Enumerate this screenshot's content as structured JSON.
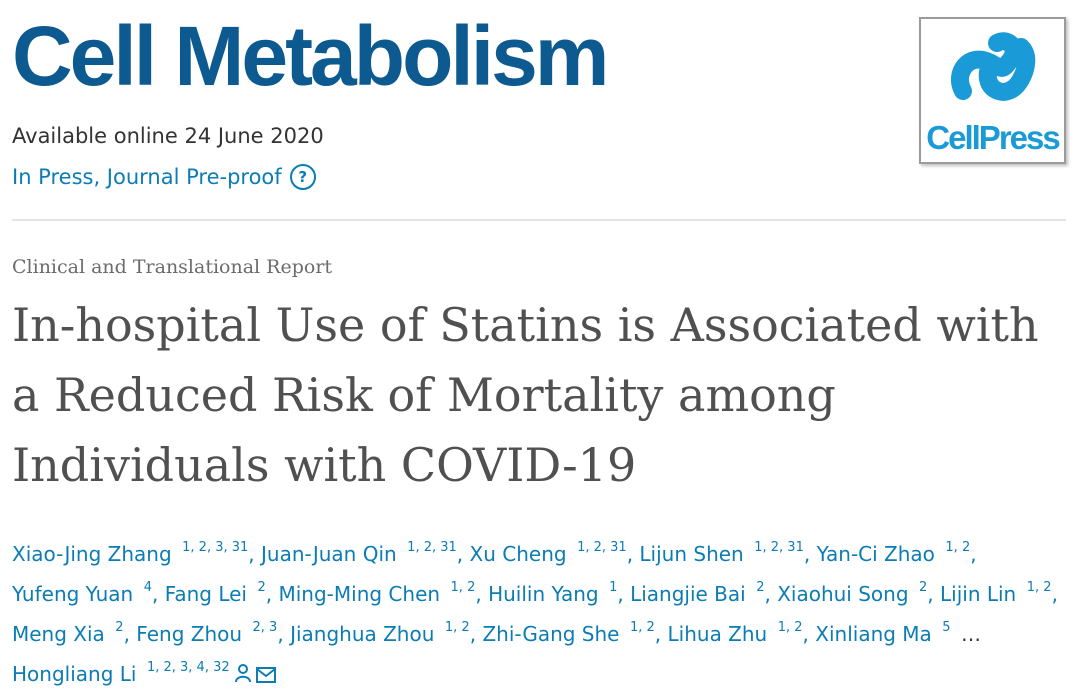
{
  "header": {
    "journal_title": "Cell Metabolism",
    "available_online": "Available online 24 June 2020",
    "status": "In Press, Journal Pre-proof",
    "help_icon": "question-circle-icon",
    "publisher_logo_text": "CellPress"
  },
  "article": {
    "type": "Clinical and Translational Report",
    "title": "In-hospital Use of Statins is Associated with a Reduced Risk of Mortality among Individuals with COVID-19"
  },
  "authors": [
    {
      "name": "Xiao-Jing Zhang",
      "sup": "1, 2, 3, 31"
    },
    {
      "name": "Juan-Juan Qin",
      "sup": "1, 2, 31"
    },
    {
      "name": "Xu Cheng",
      "sup": "1, 2, 31"
    },
    {
      "name": "Lijun Shen",
      "sup": "1, 2, 31"
    },
    {
      "name": "Yan-Ci Zhao",
      "sup": "1, 2"
    },
    {
      "name": "Yufeng Yuan",
      "sup": "4"
    },
    {
      "name": "Fang Lei",
      "sup": "2"
    },
    {
      "name": "Ming-Ming Chen",
      "sup": "1, 2"
    },
    {
      "name": "Huilin Yang",
      "sup": "1"
    },
    {
      "name": "Liangjie Bai",
      "sup": "2"
    },
    {
      "name": "Xiaohui Song",
      "sup": "2"
    },
    {
      "name": "Lijin Lin",
      "sup": "1, 2"
    },
    {
      "name": "Meng Xia",
      "sup": "2"
    },
    {
      "name": "Feng Zhou",
      "sup": "2, 3"
    },
    {
      "name": "Jianghua Zhou",
      "sup": "1, 2"
    },
    {
      "name": "Zhi-Gang She",
      "sup": "1, 2"
    },
    {
      "name": "Lihua Zhu",
      "sup": "1, 2"
    },
    {
      "name": "Xinliang Ma",
      "sup": "5"
    },
    {
      "name": "Hongliang Li",
      "sup": "1, 2, 3, 4, 32"
    }
  ],
  "authors_more": "…",
  "icons": {
    "corresponding": "person-icon",
    "email": "envelope-icon"
  },
  "colors": {
    "journal_blue": "#0c5a8f",
    "link_blue": "#0c7cb5",
    "cellpress_blue": "#1a9ad6",
    "title_gray": "#505050"
  }
}
